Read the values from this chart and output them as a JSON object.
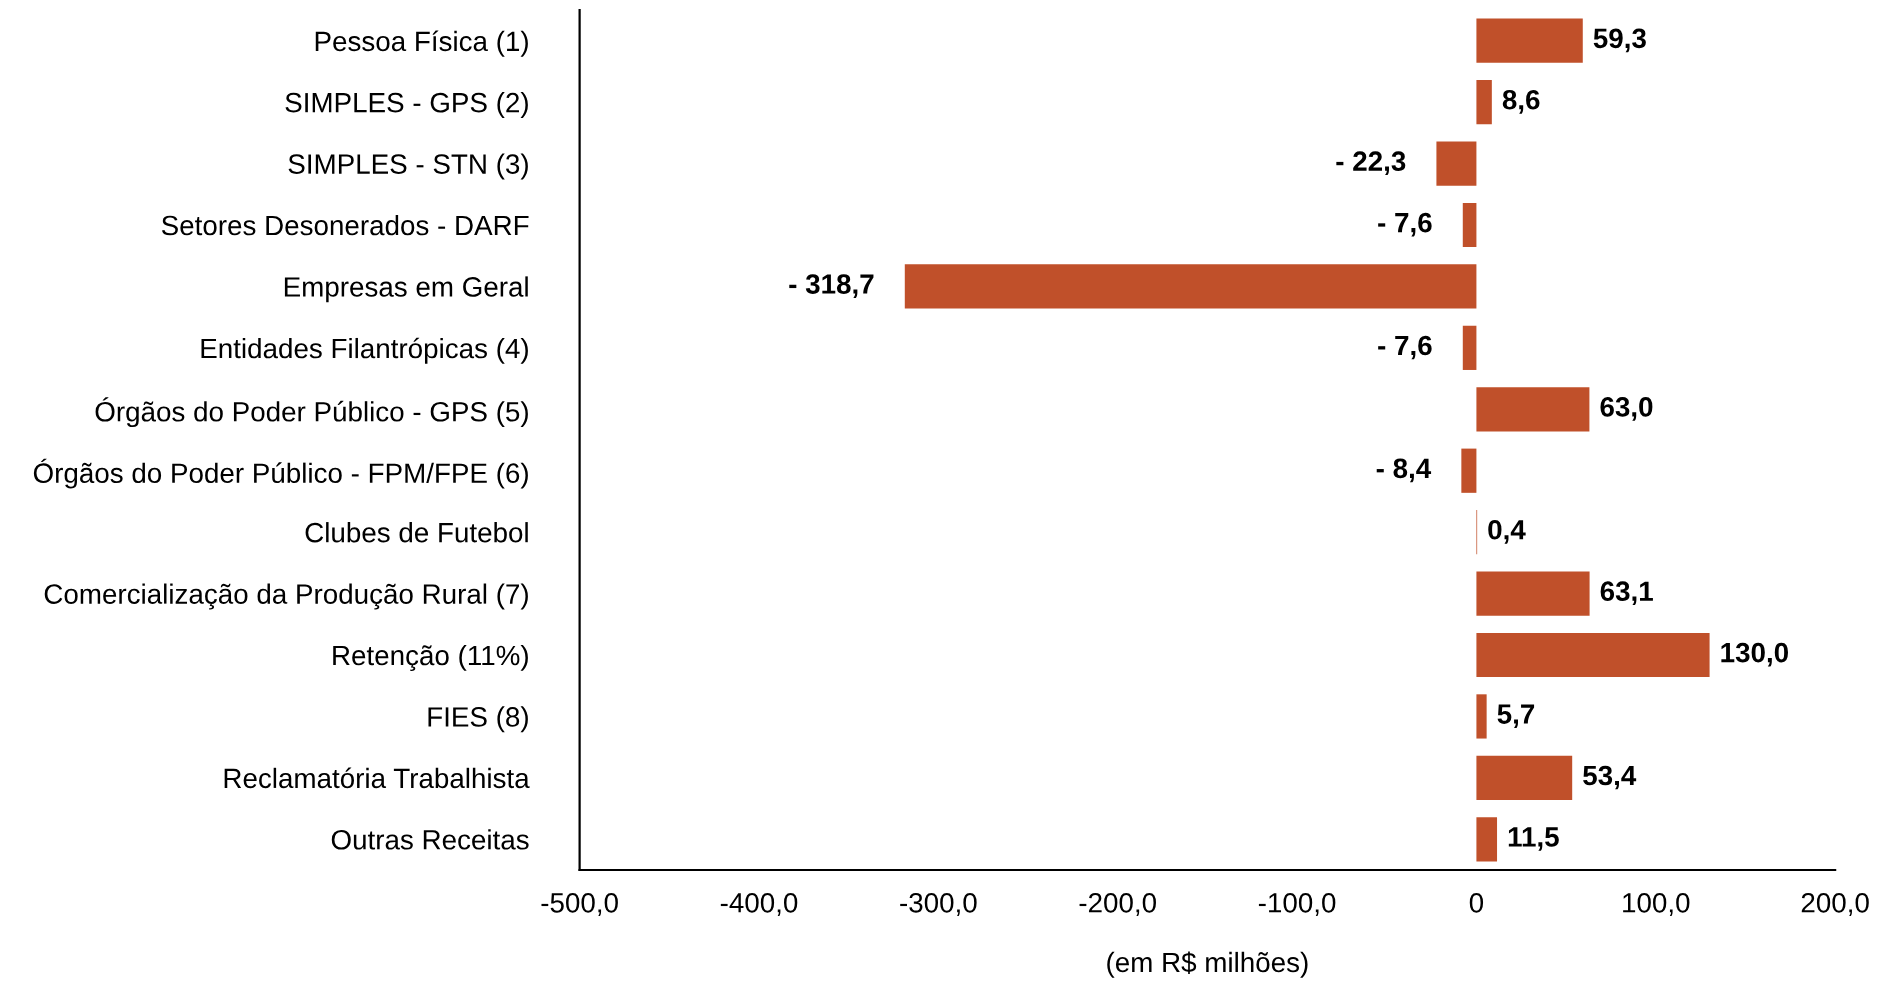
{
  "chart_data": {
    "type": "bar",
    "orientation": "horizontal",
    "xlabel": "(em R$ milhões)",
    "categories": [
      "Pessoa Física (1)",
      "SIMPLES - GPS (2)",
      "SIMPLES - STN (3)",
      "Setores Desonerados - DARF",
      "Empresas em Geral",
      "Entidades Filantrópicas (4)",
      "Órgãos do Poder Público - GPS (5)",
      "Órgãos do Poder Público - FPM/FPE (6)",
      "Clubes de Futebol",
      "Comercialização da Produção Rural (7)",
      "Retenção (11%)",
      "FIES (8)",
      "Reclamatória Trabalhista",
      "Outras Receitas"
    ],
    "values": [
      59.3,
      8.6,
      -22.3,
      -7.6,
      -318.7,
      -7.6,
      63.0,
      -8.4,
      0.4,
      63.1,
      130.0,
      5.7,
      53.4,
      11.5
    ],
    "value_labels": [
      "59,3",
      "8,6",
      "- 22,3",
      "- 7,6",
      "- 318,7",
      "- 7,6",
      "63,0",
      "- 8,4",
      "0,4",
      "63,1",
      "130,0",
      "5,7",
      "53,4",
      "11,5"
    ],
    "color": "#c0502a",
    "xlim": [
      -500,
      200
    ],
    "xticks": [
      {
        "value": -500,
        "label": "-500,0"
      },
      {
        "value": -400,
        "label": "-400,0"
      },
      {
        "value": -300,
        "label": "-300,0"
      },
      {
        "value": -200,
        "label": "-200,0"
      },
      {
        "value": -100,
        "label": "-100,0"
      },
      0,
      {
        "value": 100,
        "label": "100,0"
      },
      {
        "value": 200,
        "label": "200,0"
      }
    ],
    "grid": false
  }
}
